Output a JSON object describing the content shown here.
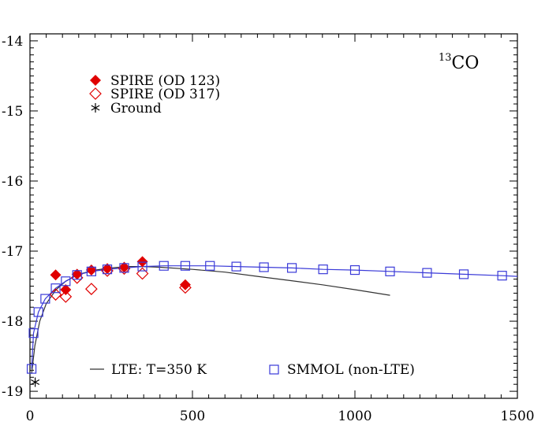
{
  "chart_data": {
    "type": "scatter",
    "title": "CO",
    "title_superscript": "13",
    "xlim": [
      0,
      1500
    ],
    "ylim": [
      -19.1,
      -13.9
    ],
    "x_ticks": [
      0,
      500,
      1000,
      1500
    ],
    "y_ticks": [
      -19,
      -18,
      -17,
      -16,
      -15,
      -14
    ],
    "x_tick_labels": [
      "0",
      "500",
      "1000",
      "1500"
    ],
    "y_tick_labels": [
      "-19",
      "-18",
      "-17",
      "-16",
      "-15",
      "-14"
    ],
    "grid": false,
    "colors": {
      "spire": "#e00000",
      "smmol": "#3a3ad8",
      "lte": "#333333",
      "ground": "#000000"
    },
    "series": [
      {
        "name": "SPIRE (OD 123)",
        "marker": "filled-diamond",
        "points": [
          [
            79,
            -17.34
          ],
          [
            110,
            -17.55
          ],
          [
            145,
            -17.33
          ],
          [
            189,
            -17.27
          ],
          [
            238,
            -17.25
          ],
          [
            290,
            -17.23
          ],
          [
            346,
            -17.15
          ],
          [
            478,
            -17.48
          ]
        ]
      },
      {
        "name": "SPIRE (OD 317)",
        "marker": "open-diamond",
        "points": [
          [
            79,
            -17.62
          ],
          [
            110,
            -17.65
          ],
          [
            145,
            -17.38
          ],
          [
            189,
            -17.54
          ],
          [
            238,
            -17.28
          ],
          [
            290,
            -17.25
          ],
          [
            346,
            -17.32
          ],
          [
            478,
            -17.52
          ]
        ]
      },
      {
        "name": "Ground",
        "marker": "asterisk",
        "points": [
          [
            16,
            -18.87
          ]
        ]
      },
      {
        "name": "SMMOL (non-LTE)",
        "marker": "open-square",
        "points": [
          [
            5,
            -18.68
          ],
          [
            11,
            -18.17
          ],
          [
            26,
            -17.87
          ],
          [
            47,
            -17.68
          ],
          [
            79,
            -17.53
          ],
          [
            110,
            -17.43
          ],
          [
            145,
            -17.34
          ],
          [
            189,
            -17.29
          ],
          [
            238,
            -17.26
          ],
          [
            290,
            -17.24
          ],
          [
            346,
            -17.22
          ],
          [
            412,
            -17.21
          ],
          [
            478,
            -17.21
          ],
          [
            554,
            -17.21
          ],
          [
            635,
            -17.22
          ],
          [
            720,
            -17.23
          ],
          [
            806,
            -17.24
          ],
          [
            902,
            -17.26
          ],
          [
            1000,
            -17.27
          ],
          [
            1108,
            -17.29
          ],
          [
            1222,
            -17.31
          ],
          [
            1335,
            -17.33
          ],
          [
            1453,
            -17.35
          ]
        ]
      }
    ],
    "lines": [
      {
        "name": "LTE: T=350 K",
        "points": [
          [
            5,
            -18.75
          ],
          [
            15,
            -18.35
          ],
          [
            30,
            -18.0
          ],
          [
            50,
            -17.75
          ],
          [
            80,
            -17.55
          ],
          [
            110,
            -17.43
          ],
          [
            150,
            -17.33
          ],
          [
            200,
            -17.27
          ],
          [
            250,
            -17.24
          ],
          [
            300,
            -17.22
          ],
          [
            350,
            -17.22
          ],
          [
            400,
            -17.23
          ],
          [
            500,
            -17.26
          ],
          [
            600,
            -17.3
          ],
          [
            700,
            -17.36
          ],
          [
            800,
            -17.42
          ],
          [
            900,
            -17.48
          ],
          [
            1000,
            -17.55
          ],
          [
            1108,
            -17.63
          ]
        ]
      },
      {
        "name": "SMMOL (non-LTE)",
        "points": [
          [
            5,
            -18.68
          ],
          [
            11,
            -18.17
          ],
          [
            26,
            -17.87
          ],
          [
            47,
            -17.68
          ],
          [
            79,
            -17.53
          ],
          [
            110,
            -17.43
          ],
          [
            145,
            -17.34
          ],
          [
            189,
            -17.29
          ],
          [
            238,
            -17.26
          ],
          [
            290,
            -17.24
          ],
          [
            346,
            -17.22
          ],
          [
            412,
            -17.21
          ],
          [
            478,
            -17.21
          ],
          [
            554,
            -17.21
          ],
          [
            635,
            -17.22
          ],
          [
            720,
            -17.23
          ],
          [
            806,
            -17.24
          ],
          [
            902,
            -17.26
          ],
          [
            1000,
            -17.27
          ],
          [
            1108,
            -17.29
          ],
          [
            1222,
            -17.31
          ],
          [
            1335,
            -17.33
          ],
          [
            1453,
            -17.35
          ],
          [
            1500,
            -17.36
          ]
        ]
      }
    ],
    "legend_top": [
      "SPIRE (OD 123)",
      "SPIRE (OD 317)",
      "Ground"
    ],
    "legend_bottom": [
      "LTE: T=350 K",
      "SMMOL (non-LTE)"
    ]
  }
}
